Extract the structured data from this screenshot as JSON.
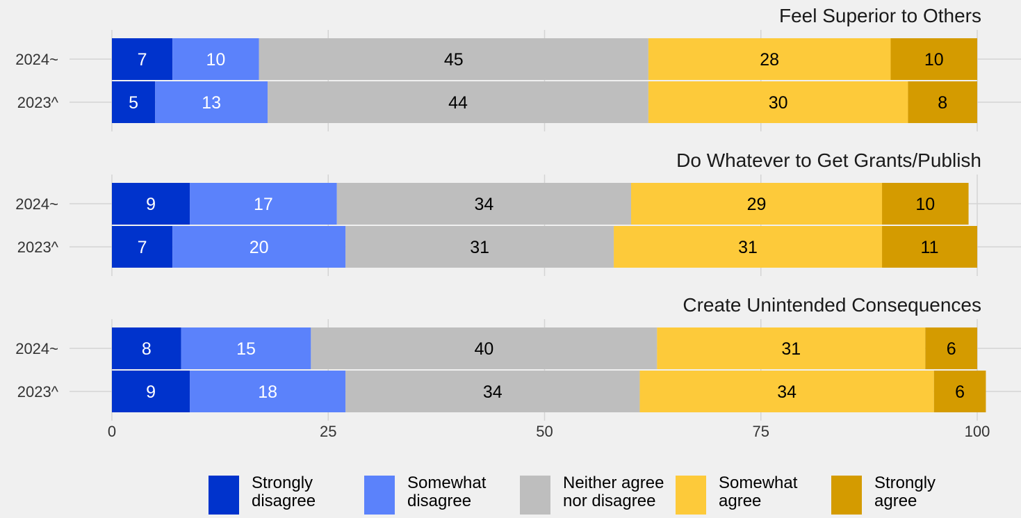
{
  "chart_data": {
    "type": "bar",
    "orientation": "horizontal-stacked",
    "x_axis": {
      "range": [
        0,
        100
      ],
      "ticks": [
        0,
        25,
        50,
        75,
        100
      ],
      "tick_labels": [
        "0",
        "25",
        "50",
        "75",
        "100"
      ]
    },
    "grid": true,
    "legend_position": "bottom",
    "series": [
      {
        "name": "Strongly\ndisagree",
        "color": "#0033cc"
      },
      {
        "name": "Somewhat\ndisagree",
        "color": "#5b82fb"
      },
      {
        "name": "Neither agree\nnor disagree",
        "color": "#bebebe"
      },
      {
        "name": "Somewhat\nagree",
        "color": "#fdca3a"
      },
      {
        "name": "Strongly\nagree",
        "color": "#d49b00"
      }
    ],
    "panels": [
      {
        "title": "Feel Superior to Others",
        "rows": [
          {
            "label": "2024~",
            "values": [
              7,
              10,
              45,
              28,
              10
            ]
          },
          {
            "label": "2023^",
            "values": [
              5,
              13,
              44,
              30,
              8
            ]
          }
        ]
      },
      {
        "title": "Do Whatever to Get Grants/Publish",
        "rows": [
          {
            "label": "2024~",
            "values": [
              9,
              17,
              34,
              29,
              10
            ]
          },
          {
            "label": "2023^",
            "values": [
              7,
              20,
              31,
              31,
              11
            ]
          }
        ]
      },
      {
        "title": "Create Unintended Consequences",
        "rows": [
          {
            "label": "2024~",
            "values": [
              8,
              15,
              40,
              31,
              6
            ]
          },
          {
            "label": "2023^",
            "values": [
              9,
              18,
              34,
              34,
              6
            ]
          }
        ]
      }
    ]
  }
}
